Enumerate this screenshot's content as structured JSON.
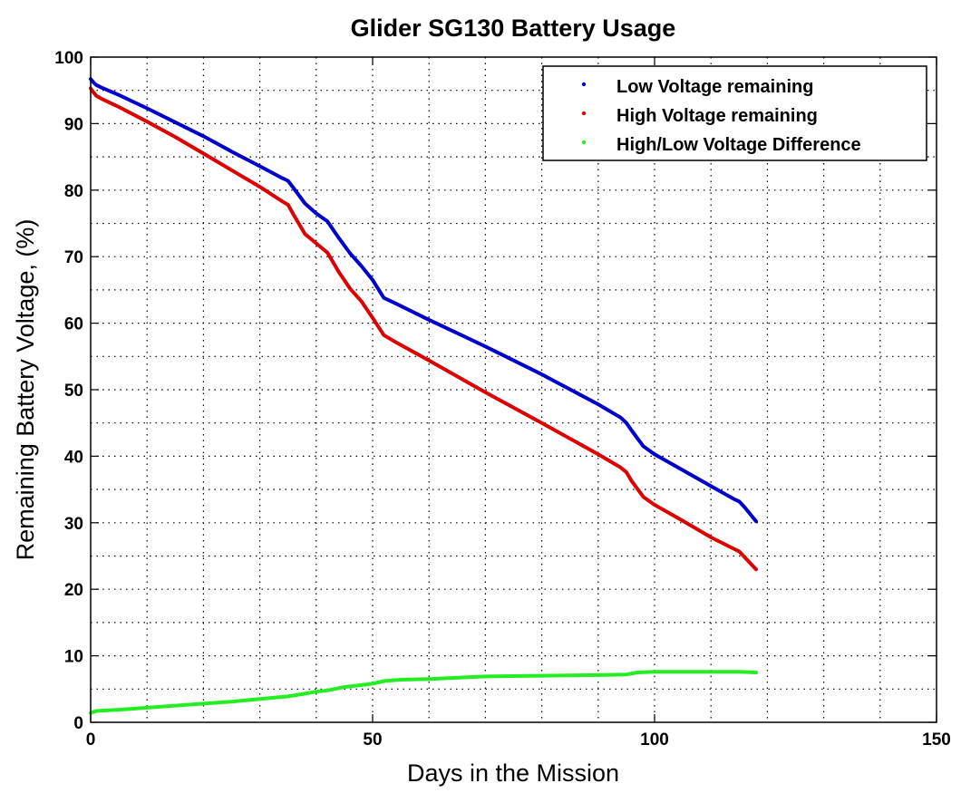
{
  "chart_data": {
    "type": "line",
    "title": "Glider SG130 Battery Usage",
    "xlabel": "Days in the Mission",
    "ylabel": "Remaining Battery Voltage, (%)",
    "xlim": [
      0,
      150
    ],
    "ylim": [
      0,
      100
    ],
    "xticks": [
      0,
      50,
      100,
      150
    ],
    "yticks": [
      0,
      10,
      20,
      30,
      40,
      50,
      60,
      70,
      80,
      90,
      100
    ],
    "xtick_labels": [
      "0",
      "50",
      "100",
      "150"
    ],
    "ytick_labels": [
      "0",
      "10",
      "20",
      "30",
      "40",
      "50",
      "60",
      "70",
      "80",
      "90",
      "100"
    ],
    "grid": true,
    "legend_position": "top-right",
    "series": [
      {
        "name": "Low Voltage remaining",
        "color": "#0000cc",
        "x": [
          0,
          0.5,
          1,
          2,
          5,
          10,
          15,
          20,
          25,
          30,
          34,
          35,
          36,
          38,
          40,
          42,
          44,
          46,
          48,
          50,
          52,
          54,
          60,
          70,
          80,
          90,
          94,
          95,
          96,
          98,
          100,
          105,
          110,
          114,
          115,
          116,
          118
        ],
        "y": [
          96.7,
          96.2,
          95.8,
          95.4,
          94.3,
          92.3,
          90.2,
          88.1,
          85.8,
          83.6,
          81.8,
          81.4,
          80.3,
          78.0,
          76.5,
          75.3,
          72.8,
          70.5,
          68.6,
          66.5,
          63.8,
          63.0,
          60.5,
          56.5,
          52.3,
          47.8,
          45.8,
          45.0,
          43.8,
          41.5,
          40.3,
          37.9,
          35.5,
          33.6,
          33.2,
          32.3,
          30.2
        ]
      },
      {
        "name": "High Voltage remaining",
        "color": "#dd0000",
        "x": [
          0,
          0.5,
          1,
          2,
          5,
          10,
          15,
          20,
          25,
          30,
          34,
          35,
          36,
          38,
          40,
          42,
          44,
          46,
          48,
          50,
          52,
          54,
          60,
          70,
          80,
          90,
          94,
          95,
          96,
          98,
          100,
          105,
          110,
          114,
          115,
          116,
          118
        ],
        "y": [
          95.3,
          94.7,
          94.2,
          93.7,
          92.5,
          90.3,
          88.0,
          85.5,
          83.0,
          80.5,
          78.3,
          77.8,
          76.3,
          73.4,
          72.0,
          70.6,
          67.7,
          65.2,
          63.3,
          60.8,
          58.2,
          57.2,
          54.4,
          49.6,
          45.0,
          40.3,
          38.3,
          37.6,
          36.2,
          33.9,
          32.7,
          30.3,
          27.8,
          26.1,
          25.7,
          24.8,
          23.0
        ]
      },
      {
        "name": "High/Low Voltage Difference",
        "color": "#22ee22",
        "x": [
          0,
          1,
          5,
          10,
          15,
          20,
          25,
          30,
          35,
          38,
          40,
          42,
          45,
          48,
          50,
          52,
          55,
          60,
          70,
          80,
          90,
          95,
          97,
          100,
          105,
          110,
          115,
          118
        ],
        "y": [
          1.4,
          1.7,
          1.9,
          2.2,
          2.5,
          2.8,
          3.1,
          3.5,
          3.9,
          4.3,
          4.6,
          4.8,
          5.3,
          5.6,
          5.8,
          6.2,
          6.4,
          6.5,
          6.9,
          7.0,
          7.1,
          7.2,
          7.5,
          7.6,
          7.6,
          7.6,
          7.6,
          7.5
        ]
      }
    ]
  }
}
